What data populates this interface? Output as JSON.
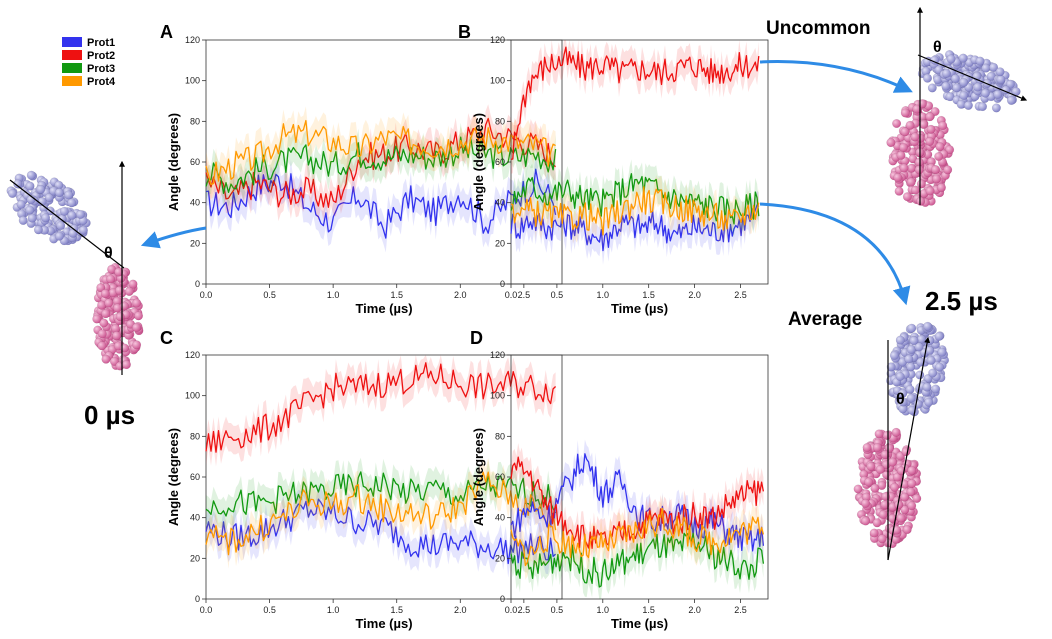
{
  "colors": {
    "Prot1": "#3333ee",
    "Prot2": "#ee1111",
    "Prot3": "#119911",
    "Prot4": "#ff9900",
    "arrow": "#2e8be6",
    "pink": "#e070a8",
    "lavender": "#9a9ad6"
  },
  "legend": [
    "Prot1",
    "Prot2",
    "Prot3",
    "Prot4"
  ],
  "annotations": {
    "uncommon": "Uncommon",
    "average": "Average",
    "time_start": "0 µs",
    "time_end": "2.5 µs",
    "theta": "θ"
  },
  "chart_data": [
    {
      "type": "line",
      "panel": "A",
      "xlabel": "Time (µs)",
      "ylabel": "Angle (degrees)",
      "xlim": [
        0,
        2.8
      ],
      "ylim": [
        0,
        120
      ],
      "xticks": [
        0.0,
        0.5,
        1.0,
        1.5,
        2.0,
        2.5
      ],
      "yticks": [
        0,
        20,
        40,
        60,
        80,
        100,
        120
      ],
      "x": [
        0,
        0.2,
        0.4,
        0.6,
        0.8,
        1.0,
        1.2,
        1.4,
        1.6,
        1.8,
        2.0,
        2.2,
        2.4,
        2.6,
        2.75
      ],
      "series": [
        {
          "name": "Prot1",
          "values": [
            40,
            38,
            48,
            52,
            38,
            30,
            44,
            28,
            42,
            35,
            45,
            30,
            42,
            50,
            40
          ]
        },
        {
          "name": "Prot2",
          "values": [
            50,
            42,
            50,
            44,
            46,
            40,
            62,
            64,
            68,
            64,
            70,
            76,
            72,
            68,
            62
          ]
        },
        {
          "name": "Prot3",
          "values": [
            55,
            50,
            56,
            60,
            62,
            58,
            64,
            62,
            64,
            62,
            66,
            64,
            62,
            64,
            60
          ]
        },
        {
          "name": "Prot4",
          "values": [
            52,
            58,
            62,
            72,
            74,
            70,
            66,
            72,
            70,
            68,
            70,
            72,
            70,
            68,
            62
          ]
        }
      ]
    },
    {
      "type": "line",
      "panel": "B",
      "xlabel": "Time (µs)",
      "ylabel": "Angle (degrees)",
      "xlim": [
        0,
        2.8
      ],
      "ylim": [
        0,
        120
      ],
      "xticks": [
        0.0,
        0.5,
        1.0,
        1.5,
        2.0,
        2.5
      ],
      "yticks": [
        0,
        20,
        40,
        60,
        80,
        100,
        120
      ],
      "x": [
        0,
        0.1,
        0.2,
        0.4,
        0.6,
        0.8,
        1.0,
        1.2,
        1.4,
        1.6,
        1.8,
        2.0,
        2.2,
        2.4,
        2.6,
        2.7
      ],
      "series": [
        {
          "name": "Prot1",
          "values": [
            30,
            28,
            32,
            28,
            30,
            26,
            22,
            30,
            28,
            30,
            24,
            28,
            26,
            28,
            32,
            34
          ]
        },
        {
          "name": "Prot2",
          "values": [
            60,
            85,
            100,
            108,
            110,
            106,
            108,
            104,
            106,
            104,
            106,
            108,
            104,
            106,
            108,
            106
          ]
        },
        {
          "name": "Prot3",
          "values": [
            40,
            45,
            48,
            44,
            46,
            42,
            40,
            46,
            50,
            46,
            42,
            40,
            38,
            36,
            38,
            40
          ]
        },
        {
          "name": "Prot4",
          "values": [
            38,
            35,
            36,
            34,
            32,
            34,
            30,
            36,
            42,
            40,
            38,
            36,
            34,
            30,
            36,
            38
          ]
        }
      ]
    },
    {
      "type": "line",
      "panel": "C",
      "xlabel": "Time (µs)",
      "ylabel": "Angle (degrees)",
      "xlim": [
        0,
        2.8
      ],
      "ylim": [
        0,
        120
      ],
      "xticks": [
        0.0,
        0.5,
        1.0,
        1.5,
        2.0,
        2.5
      ],
      "yticks": [
        0,
        20,
        40,
        60,
        80,
        100,
        120
      ],
      "x": [
        0,
        0.2,
        0.4,
        0.6,
        0.8,
        1.0,
        1.2,
        1.4,
        1.6,
        1.8,
        2.0,
        2.2,
        2.4,
        2.6,
        2.75
      ],
      "series": [
        {
          "name": "Prot1",
          "values": [
            35,
            30,
            32,
            38,
            44,
            42,
            38,
            36,
            28,
            26,
            28,
            26,
            24,
            26,
            22
          ]
        },
        {
          "name": "Prot2",
          "values": [
            75,
            80,
            82,
            88,
            96,
            104,
            104,
            106,
            108,
            110,
            106,
            104,
            106,
            104,
            102
          ]
        },
        {
          "name": "Prot3",
          "values": [
            45,
            48,
            46,
            50,
            52,
            54,
            56,
            56,
            52,
            54,
            50,
            56,
            54,
            52,
            48
          ]
        },
        {
          "name": "Prot4",
          "values": [
            30,
            28,
            34,
            40,
            48,
            46,
            50,
            44,
            42,
            40,
            46,
            58,
            50,
            44,
            36
          ]
        }
      ]
    },
    {
      "type": "line",
      "panel": "D",
      "xlabel": "Time (µs)",
      "ylabel": "Angle (degrees)",
      "xlim": [
        0,
        2.8
      ],
      "ylim": [
        0,
        120
      ],
      "xticks": [
        0.0,
        0.5,
        1.0,
        1.5,
        2.0,
        2.5
      ],
      "yticks": [
        0,
        20,
        40,
        60,
        80,
        100,
        120
      ],
      "x": [
        0,
        0.2,
        0.4,
        0.6,
        0.8,
        1.0,
        1.2,
        1.4,
        1.6,
        1.8,
        2.0,
        2.2,
        2.4,
        2.6,
        2.75
      ],
      "series": [
        {
          "name": "Prot1",
          "values": [
            35,
            45,
            40,
            55,
            70,
            52,
            58,
            40,
            38,
            42,
            36,
            38,
            32,
            28,
            30
          ]
        },
        {
          "name": "Prot2",
          "values": [
            65,
            62,
            45,
            38,
            30,
            28,
            32,
            36,
            40,
            38,
            42,
            40,
            48,
            52,
            54
          ]
        },
        {
          "name": "Prot3",
          "values": [
            20,
            14,
            18,
            22,
            15,
            12,
            18,
            22,
            26,
            24,
            28,
            22,
            18,
            14,
            22
          ]
        },
        {
          "name": "Prot4",
          "values": [
            28,
            22,
            30,
            28,
            25,
            26,
            30,
            34,
            38,
            36,
            30,
            28,
            32,
            34,
            38
          ]
        }
      ]
    }
  ]
}
